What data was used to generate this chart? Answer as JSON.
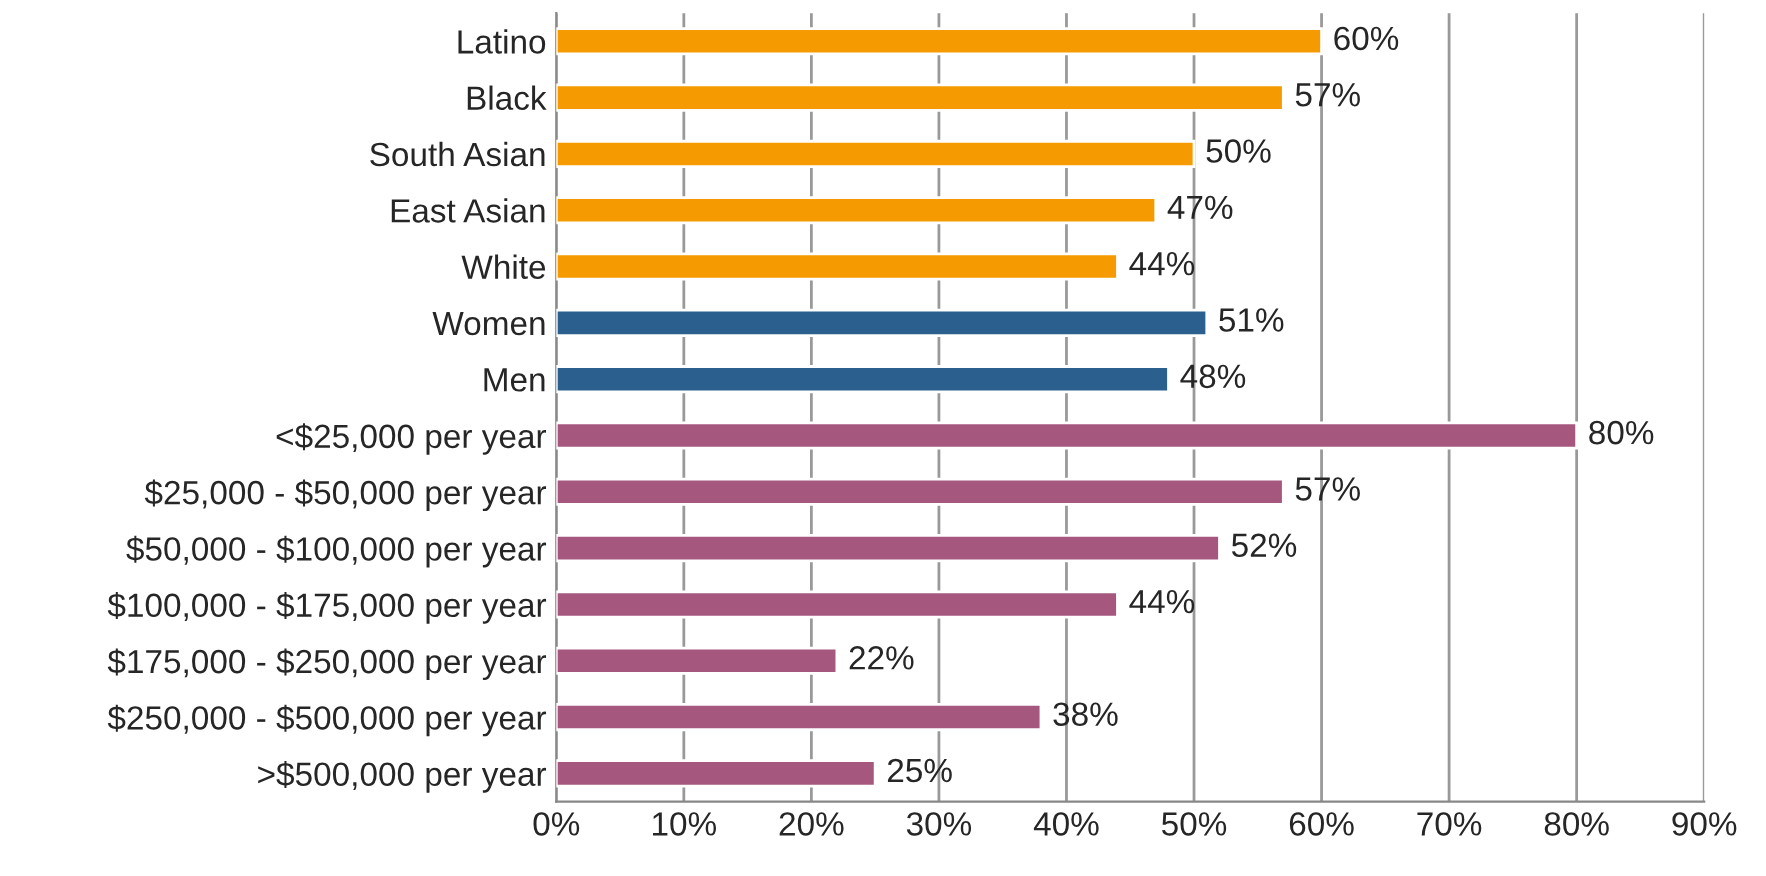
{
  "chart_data": {
    "type": "bar",
    "orientation": "horizontal",
    "categories": [
      "Latino",
      "Black",
      "South Asian",
      "East Asian",
      "White",
      "Women",
      "Men",
      "<$25,000 per year",
      "$25,000 - $50,000 per year",
      "$50,000 - $100,000 per year",
      "$100,000 - $175,000 per year",
      "$175,000 - $250,000 per year",
      "$250,000 - $500,000 per year",
      ">$500,000 per year"
    ],
    "values": [
      60,
      57,
      50,
      47,
      44,
      51,
      48,
      80,
      57,
      52,
      44,
      22,
      38,
      25
    ],
    "value_labels": [
      "60%",
      "57%",
      "50%",
      "47%",
      "44%",
      "51%",
      "48%",
      "80%",
      "57%",
      "52%",
      "44%",
      "22%",
      "38%",
      "25%"
    ],
    "colors": [
      "#f59a00",
      "#f59a00",
      "#f59a00",
      "#f59a00",
      "#f59a00",
      "#2b5f8e",
      "#2b5f8e",
      "#a6577e",
      "#a6577e",
      "#a6577e",
      "#a6577e",
      "#a6577e",
      "#a6577e",
      "#a6577e"
    ],
    "xlim": [
      0,
      90
    ],
    "xticks": [
      {
        "value": 0,
        "label": "0%"
      },
      {
        "value": 10,
        "label": "10%"
      },
      {
        "value": 20,
        "label": "20%"
      },
      {
        "value": 30,
        "label": "30%"
      },
      {
        "value": 40,
        "label": "40%"
      },
      {
        "value": 50,
        "label": "50%"
      },
      {
        "value": 60,
        "label": "60%"
      },
      {
        "value": 70,
        "label": "70%"
      },
      {
        "value": 80,
        "label": "80%"
      },
      {
        "value": 90,
        "label": "90%"
      }
    ],
    "grid": "x"
  }
}
